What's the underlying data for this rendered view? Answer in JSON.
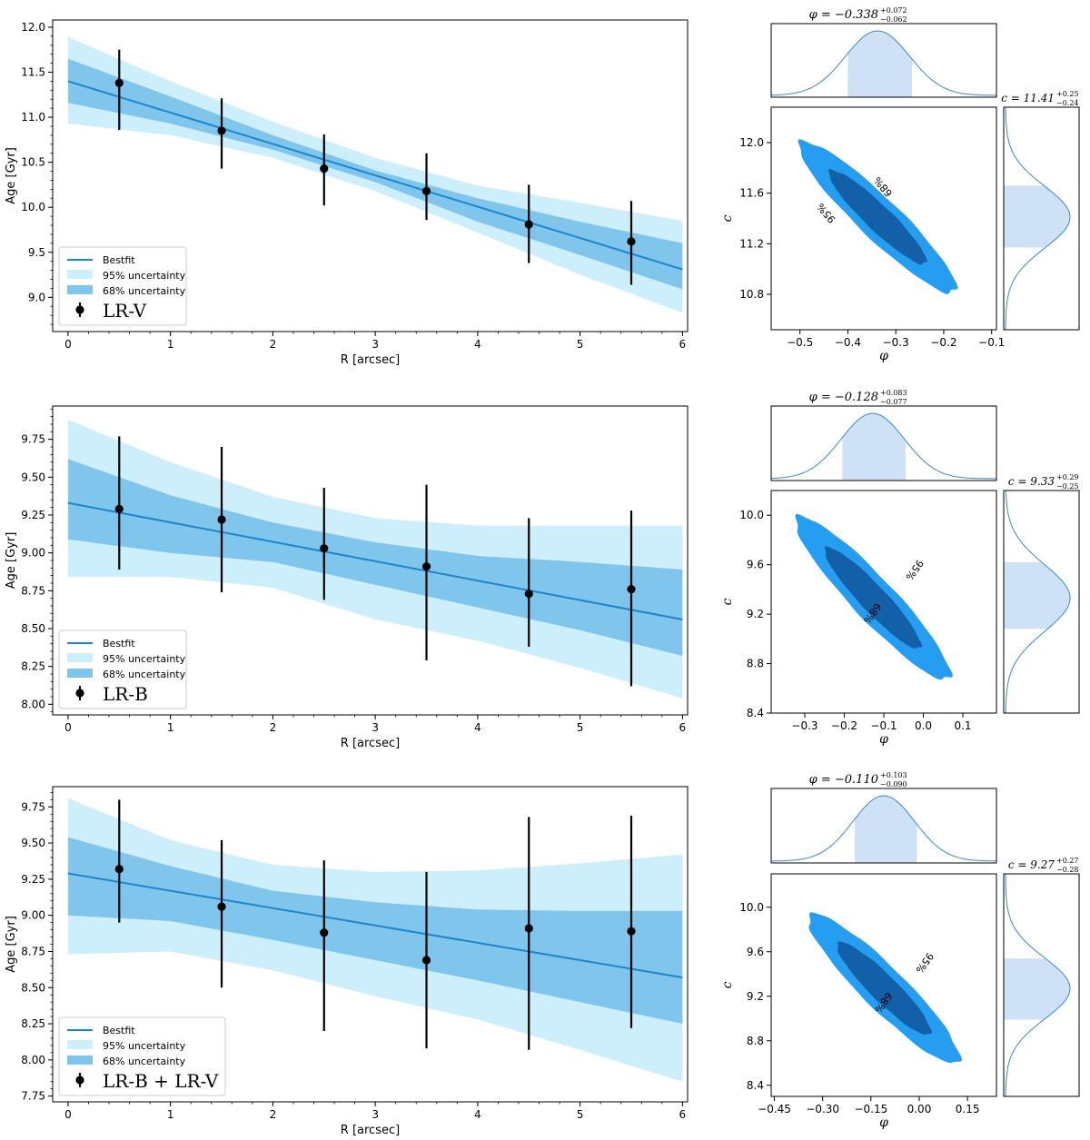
{
  "colors": {
    "line": "#1a86d0",
    "band95": "#cdeefb",
    "band68": "#7fc5ec",
    "points": "#000000",
    "contour95": "#259ef2",
    "contour68": "#1360a8",
    "hist_fill": "#cfe2f5",
    "hist_line": "#3a87cf"
  },
  "chart_data": [
    {
      "type": "line",
      "title": "",
      "xlabel": "R [arcsec]",
      "ylabel": "Age [Gyr]",
      "xlim": [
        -0.15,
        6.05
      ],
      "ylim": [
        8.62,
        12.08
      ],
      "xticks": [
        0,
        1,
        2,
        3,
        4,
        5,
        6
      ],
      "xtick_labels": [
        "0",
        "1",
        "2",
        "3",
        "4",
        "5",
        "6"
      ],
      "yticks": [
        9.0,
        9.5,
        10.0,
        10.5,
        11.0,
        11.5,
        12.0
      ],
      "ytick_labels": [
        "9.0",
        "9.5",
        "10.0",
        "10.5",
        "11.0",
        "11.5",
        "12.0"
      ],
      "legend": {
        "position": "lower-left",
        "entries": [
          "Bestfit",
          "95% uncertainty",
          "68% uncertainty"
        ],
        "data_label": "LR-V"
      },
      "bestfit": {
        "x": [
          0,
          6
        ],
        "y": [
          11.4,
          9.31
        ]
      },
      "band95": {
        "x": [
          0,
          1,
          2,
          3,
          4,
          5,
          6
        ],
        "upper": [
          11.89,
          11.4,
          10.95,
          10.55,
          10.24,
          10.05,
          9.85
        ],
        "lower": [
          10.93,
          10.8,
          10.55,
          10.18,
          9.72,
          9.25,
          8.83
        ]
      },
      "band68": {
        "x": [
          0,
          1,
          2,
          3,
          4,
          5,
          6
        ],
        "upper": [
          11.65,
          11.23,
          10.8,
          10.41,
          10.1,
          9.84,
          9.6
        ],
        "lower": [
          11.16,
          10.93,
          10.64,
          10.28,
          9.84,
          9.47,
          9.09
        ]
      },
      "points": {
        "x": [
          0.5,
          1.5,
          2.5,
          3.5,
          4.5,
          5.5
        ],
        "y": [
          11.38,
          10.85,
          10.43,
          10.18,
          9.81,
          9.62
        ],
        "yerr_low": [
          0.52,
          0.42,
          0.41,
          0.32,
          0.43,
          0.48
        ],
        "yerr_high": [
          0.37,
          0.36,
          0.38,
          0.42,
          0.44,
          0.45
        ]
      },
      "corner": {
        "phi_title": "φ = −0.338 +0.072 −0.062",
        "phi_value": "φ = −0.338",
        "phi_sup": "+0.072",
        "phi_sub": "−0.062",
        "c_title": "c = 11.41 +0.25 −0.24",
        "c_value": "c = 11.41",
        "c_sup": "+0.25",
        "c_sub": "−0.24",
        "xlabel": "φ",
        "ylabel": "c",
        "xlim": [
          -0.56,
          -0.09
        ],
        "ylim": [
          10.52,
          12.28
        ],
        "xticks": [
          -0.5,
          -0.4,
          -0.3,
          -0.2,
          -0.1
        ],
        "xtick_labels": [
          "−0.5",
          "−0.4",
          "−0.3",
          "−0.2",
          "−0.1"
        ],
        "yticks": [
          10.8,
          11.2,
          11.6,
          12.0
        ],
        "ytick_labels": [
          "10.8",
          "11.2",
          "11.6",
          "12.0"
        ],
        "phi_mean": -0.338,
        "phi_sigma": 0.067,
        "phi_lo": -0.4,
        "phi_hi": -0.266,
        "c_mean": 11.41,
        "c_sigma": 0.245,
        "c_lo": 11.17,
        "c_hi": 11.66,
        "corr": -0.93,
        "label95": "95%",
        "label68": "68%"
      }
    },
    {
      "type": "line",
      "title": "",
      "xlabel": "R [arcsec]",
      "ylabel": "Age [Gyr]",
      "xlim": [
        -0.15,
        6.05
      ],
      "ylim": [
        7.93,
        9.97
      ],
      "xticks": [
        0,
        1,
        2,
        3,
        4,
        5,
        6
      ],
      "xtick_labels": [
        "0",
        "1",
        "2",
        "3",
        "4",
        "5",
        "6"
      ],
      "yticks": [
        8.0,
        8.25,
        8.5,
        8.75,
        9.0,
        9.25,
        9.5,
        9.75
      ],
      "ytick_labels": [
        "8.00",
        "8.25",
        "8.50",
        "8.75",
        "9.00",
        "9.25",
        "9.50",
        "9.75"
      ],
      "legend": {
        "position": "lower-left",
        "entries": [
          "Bestfit",
          "95% uncertainty",
          "68% uncertainty"
        ],
        "data_label": "LR-B"
      },
      "bestfit": {
        "x": [
          0,
          6
        ],
        "y": [
          9.33,
          8.56
        ]
      },
      "band95": {
        "x": [
          0,
          1,
          2,
          3,
          4,
          5,
          6
        ],
        "upper": [
          9.88,
          9.6,
          9.37,
          9.23,
          9.18,
          9.18,
          9.18
        ],
        "lower": [
          8.84,
          8.84,
          8.77,
          8.56,
          8.42,
          8.24,
          8.04
        ]
      },
      "band68": {
        "x": [
          0,
          1,
          2,
          3,
          4,
          5,
          6
        ],
        "upper": [
          9.62,
          9.38,
          9.2,
          9.07,
          8.98,
          8.94,
          8.89
        ],
        "lower": [
          9.09,
          9.0,
          8.94,
          8.79,
          8.64,
          8.49,
          8.32
        ]
      },
      "points": {
        "x": [
          0.5,
          1.5,
          2.5,
          3.5,
          4.5,
          5.5
        ],
        "y": [
          9.29,
          9.22,
          9.03,
          8.91,
          8.73,
          8.76
        ],
        "yerr_low": [
          0.4,
          0.48,
          0.34,
          0.62,
          0.35,
          0.64
        ],
        "yerr_high": [
          0.48,
          0.48,
          0.4,
          0.54,
          0.5,
          0.52
        ]
      },
      "corner": {
        "phi_title": "φ = −0.128 +0.083 −0.077",
        "phi_value": "φ = −0.128",
        "phi_sup": "+0.083",
        "phi_sub": "−0.077",
        "c_title": "c = 9.33 +0.29 −0.25",
        "c_value": "c = 9.33",
        "c_sup": "+0.29",
        "c_sub": "−0.25",
        "xlabel": "φ",
        "ylabel": "c",
        "xlim": [
          -0.385,
          0.185
        ],
        "ylim": [
          8.4,
          10.2
        ],
        "xticks": [
          -0.3,
          -0.2,
          -0.1,
          0.0,
          0.1
        ],
        "xtick_labels": [
          "−0.3",
          "−0.2",
          "−0.1",
          "0.0",
          "0.1"
        ],
        "yticks": [
          8.4,
          8.8,
          9.2,
          9.6,
          10.0
        ],
        "ytick_labels": [
          "8.4",
          "8.8",
          "9.2",
          "9.6",
          "10.0"
        ],
        "phi_mean": -0.128,
        "phi_sigma": 0.08,
        "phi_lo": -0.205,
        "phi_hi": -0.045,
        "c_mean": 9.33,
        "c_sigma": 0.27,
        "c_lo": 9.08,
        "c_hi": 9.62,
        "corr": -0.93,
        "label95": "95%",
        "label68": "68%"
      }
    },
    {
      "type": "line",
      "title": "",
      "xlabel": "R [arcsec]",
      "ylabel": "Age [Gyr]",
      "xlim": [
        -0.15,
        6.05
      ],
      "ylim": [
        7.71,
        9.89
      ],
      "xticks": [
        0,
        1,
        2,
        3,
        4,
        5,
        6
      ],
      "xtick_labels": [
        "0",
        "1",
        "2",
        "3",
        "4",
        "5",
        "6"
      ],
      "yticks": [
        7.75,
        8.0,
        8.25,
        8.5,
        8.75,
        9.0,
        9.25,
        9.5,
        9.75
      ],
      "ytick_labels": [
        "7.75",
        "8.00",
        "8.25",
        "8.50",
        "8.75",
        "9.00",
        "9.25",
        "9.50",
        "9.75"
      ],
      "legend": {
        "position": "lower-left",
        "entries": [
          "Bestfit",
          "95% uncertainty",
          "68% uncertainty"
        ],
        "data_label": "LR-B + LR-V"
      },
      "bestfit": {
        "x": [
          0,
          6
        ],
        "y": [
          9.29,
          8.57
        ]
      },
      "band95": {
        "x": [
          0,
          1,
          2,
          3,
          4,
          5,
          6
        ],
        "upper": [
          9.81,
          9.52,
          9.35,
          9.3,
          9.31,
          9.36,
          9.42
        ],
        "lower": [
          8.73,
          8.75,
          8.62,
          8.44,
          8.28,
          8.07,
          7.85
        ]
      },
      "band68": {
        "x": [
          0,
          1,
          2,
          3,
          4,
          5,
          6
        ],
        "upper": [
          9.54,
          9.34,
          9.17,
          9.09,
          9.04,
          9.03,
          9.03
        ],
        "lower": [
          9.0,
          8.96,
          8.83,
          8.69,
          8.55,
          8.4,
          8.25
        ]
      },
      "points": {
        "x": [
          0.5,
          1.5,
          2.5,
          3.5,
          4.5,
          5.5
        ],
        "y": [
          9.32,
          9.06,
          8.88,
          8.69,
          8.91,
          8.89
        ],
        "yerr_low": [
          0.37,
          0.56,
          0.68,
          0.61,
          0.84,
          0.67
        ],
        "yerr_high": [
          0.48,
          0.46,
          0.5,
          0.61,
          0.77,
          0.8
        ]
      },
      "corner": {
        "phi_title": "φ = −0.110 +0.103 −0.090",
        "phi_value": "φ = −0.110",
        "phi_sup": "+0.103",
        "phi_sub": "−0.090",
        "c_title": "c = 9.27 +0.27 −0.28",
        "c_value": "c = 9.27",
        "c_sup": "+0.27",
        "c_sub": "−0.28",
        "xlabel": "φ",
        "ylabel": "c",
        "xlim": [
          -0.46,
          0.24
        ],
        "ylim": [
          8.3,
          10.3
        ],
        "xticks": [
          -0.45,
          -0.3,
          -0.15,
          0.0,
          0.15
        ],
        "xtick_labels": [
          "−0.45",
          "−0.30",
          "−0.15",
          "0.00",
          "0.15"
        ],
        "yticks": [
          8.4,
          8.8,
          9.2,
          9.6,
          10.0
        ],
        "ytick_labels": [
          "8.4",
          "8.8",
          "9.2",
          "9.6",
          "10.0"
        ],
        "phi_mean": -0.11,
        "phi_sigma": 0.096,
        "phi_lo": -0.2,
        "phi_hi": -0.007,
        "c_mean": 9.27,
        "c_sigma": 0.275,
        "c_lo": 8.99,
        "c_hi": 9.54,
        "corr": -0.92,
        "label95": "95%",
        "label68": "68%"
      }
    }
  ]
}
